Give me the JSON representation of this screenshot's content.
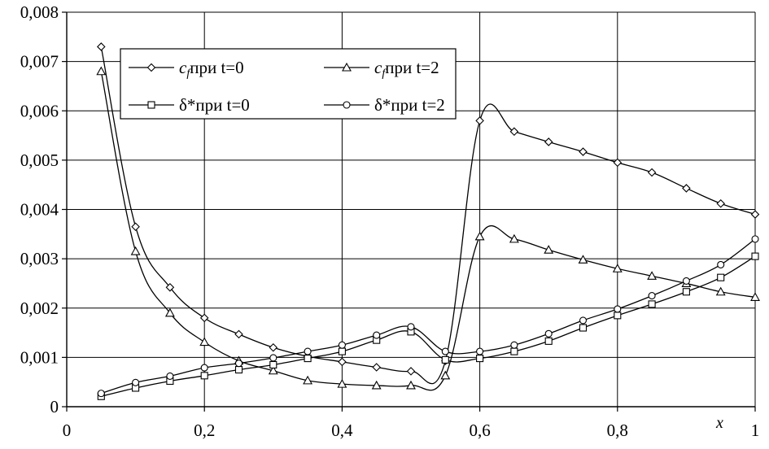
{
  "chart_data": {
    "type": "line",
    "xlabel": "x",
    "ylabel": "",
    "xlim": [
      0,
      1
    ],
    "ylim": [
      0,
      0.008
    ],
    "grid": true,
    "legend_position": "top-left",
    "x_ticks": [
      0,
      0.2,
      0.4,
      0.6,
      0.8,
      1
    ],
    "x_tick_labels": [
      "0",
      "0,2",
      "0,4",
      "0,6",
      "0,8",
      "1"
    ],
    "y_ticks": [
      0,
      0.001,
      0.002,
      0.003,
      0.004,
      0.005,
      0.006,
      0.007,
      0.008
    ],
    "y_tick_labels": [
      "0",
      "0,001",
      "0,002",
      "0,003",
      "0,004",
      "0,005",
      "0,006",
      "0,007",
      "0,008"
    ],
    "series": [
      {
        "name": "c_f при t=0",
        "label_symbol": "c",
        "label_subscript": "f",
        "label_rest": "при t=0",
        "marker": "diamond",
        "x": [
          0.05,
          0.1,
          0.15,
          0.2,
          0.25,
          0.3,
          0.35,
          0.4,
          0.45,
          0.5,
          0.55,
          0.6,
          0.65,
          0.7,
          0.75,
          0.8,
          0.85,
          0.9,
          0.95,
          1.0
        ],
        "y": [
          0.0073,
          0.00365,
          0.00242,
          0.0018,
          0.00147,
          0.0012,
          0.00102,
          0.00091,
          0.0008,
          0.00072,
          0.00093,
          0.0058,
          0.00558,
          0.00537,
          0.00517,
          0.00495,
          0.00475,
          0.00443,
          0.00412,
          0.0039
        ]
      },
      {
        "name": "c_f при t=2",
        "label_symbol": "c",
        "label_subscript": "f",
        "label_rest": "при t=2",
        "marker": "triangle",
        "x": [
          0.05,
          0.1,
          0.15,
          0.2,
          0.25,
          0.3,
          0.35,
          0.4,
          0.45,
          0.5,
          0.55,
          0.6,
          0.65,
          0.7,
          0.75,
          0.8,
          0.85,
          0.9,
          0.95,
          1.0
        ],
        "y": [
          0.0068,
          0.00315,
          0.0019,
          0.00131,
          0.00093,
          0.00073,
          0.00053,
          0.00046,
          0.00043,
          0.00043,
          0.00063,
          0.00345,
          0.0034,
          0.00318,
          0.00298,
          0.0028,
          0.00265,
          0.0025,
          0.00233,
          0.00222
        ]
      },
      {
        "name": "δ*при t=0",
        "label_symbol": "δ*",
        "label_subscript": "",
        "label_rest": "при t=0",
        "marker": "square",
        "x": [
          0.05,
          0.1,
          0.15,
          0.2,
          0.25,
          0.3,
          0.35,
          0.4,
          0.45,
          0.5,
          0.55,
          0.6,
          0.65,
          0.7,
          0.75,
          0.8,
          0.85,
          0.9,
          0.95,
          1.0
        ],
        "y": [
          0.00021,
          0.00038,
          0.00052,
          0.00063,
          0.00075,
          0.00085,
          0.00098,
          0.00112,
          0.00135,
          0.00152,
          0.00095,
          0.00098,
          0.00112,
          0.00133,
          0.0016,
          0.00185,
          0.00208,
          0.00233,
          0.00262,
          0.00305
        ]
      },
      {
        "name": "δ*при t=2",
        "label_symbol": "δ*",
        "label_subscript": "",
        "label_rest": "при t=2",
        "marker": "circle",
        "x": [
          0.05,
          0.1,
          0.15,
          0.2,
          0.25,
          0.3,
          0.35,
          0.4,
          0.45,
          0.5,
          0.55,
          0.6,
          0.65,
          0.7,
          0.75,
          0.8,
          0.85,
          0.9,
          0.95,
          1.0
        ],
        "y": [
          0.00027,
          0.00049,
          0.00062,
          0.00079,
          0.00088,
          0.00099,
          0.00112,
          0.00125,
          0.00145,
          0.00162,
          0.00112,
          0.00112,
          0.00125,
          0.00148,
          0.00175,
          0.00198,
          0.00225,
          0.00255,
          0.00288,
          0.0034
        ]
      }
    ]
  }
}
